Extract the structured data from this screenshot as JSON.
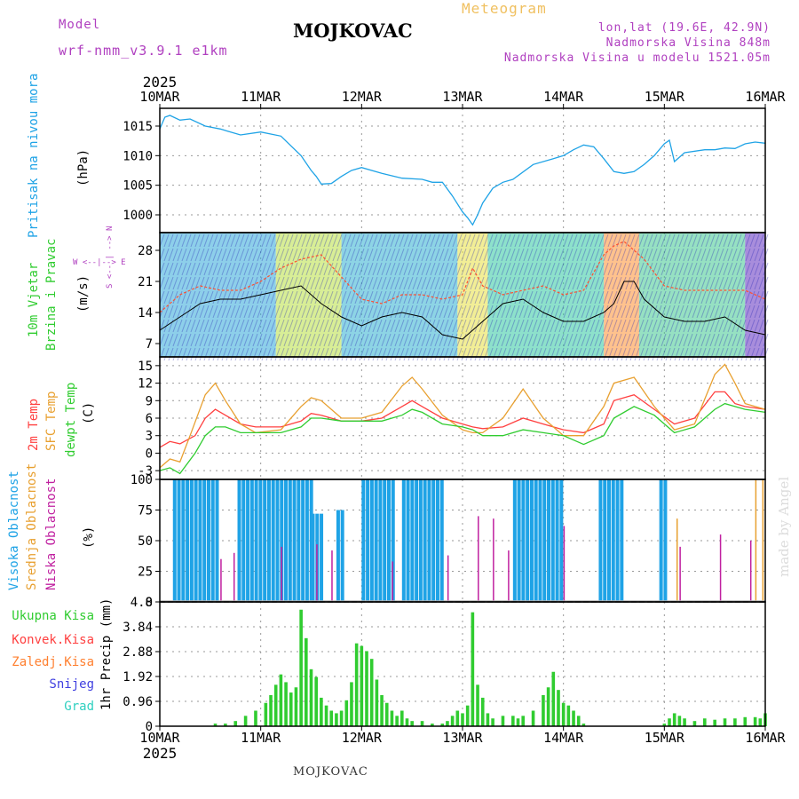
{
  "header": {
    "model_label": "Model",
    "model_value": "wrf-nmm_v3.9.1  e1km",
    "station": "MOJKOVAC",
    "title": "Meteogram",
    "lonlat": "lon,lat (19.6E, 42.9N)",
    "elevation": "Nadmorska Visina 848m",
    "model_elevation": "Nadmorska Visina u modelu 1521.05m"
  },
  "footer": {
    "station": "MOJKOVAC",
    "credit": "made by Angel"
  },
  "colors": {
    "pressure": "#1fa3e6",
    "gust": "#ff5030",
    "wind_black": "#000000",
    "temp2m": "#ff4040",
    "sfc": "#e8a030",
    "dew": "#30cc30",
    "cloud_high": "#1fa3e6",
    "cloud_mid": "#e8a030",
    "cloud_low": "#c020a0",
    "precip": "#30cc30",
    "convect": "#ff4040",
    "frozen": "#ff8030",
    "snow": "#4040e0",
    "hail": "#30d0c0",
    "violet": "#b040c0"
  },
  "chart_data": [
    {
      "type": "line",
      "name": "pressure",
      "x_labels": [
        "10MAR",
        "11MAR",
        "12MAR",
        "13MAR",
        "14MAR",
        "15MAR",
        "16MAR"
      ],
      "year_label": "2025",
      "ylabel_colored": "Pritisak na nivou mora",
      "ylabel_unit": "(hPa)",
      "yticks": [
        1000,
        1005,
        1010,
        1015
      ],
      "ylim": [
        997,
        1018
      ],
      "series": [
        {
          "name": "",
          "x": [
            0,
            0.05,
            0.1,
            0.2,
            0.3,
            0.45,
            0.6,
            0.8,
            1.0,
            1.2,
            1.4,
            1.5,
            1.55,
            1.6,
            1.7,
            1.8,
            1.9,
            2.0,
            2.2,
            2.4,
            2.6,
            2.7,
            2.8,
            2.9,
            3.0,
            3.05,
            3.1,
            3.15,
            3.2,
            3.3,
            3.4,
            3.5,
            3.7,
            3.9,
            4.0,
            4.1,
            4.2,
            4.3,
            4.4,
            4.5,
            4.6,
            4.7,
            4.8,
            4.9,
            5.0,
            5.05,
            5.1,
            5.2,
            5.4,
            5.5,
            5.6,
            5.7,
            5.8,
            5.9,
            6.0
          ],
          "y": [
            1014.5,
            1016.5,
            1016.8,
            1016.0,
            1016.2,
            1015.0,
            1014.5,
            1013.5,
            1014.0,
            1013.3,
            1010.0,
            1007.5,
            1006.5,
            1005.2,
            1005.3,
            1006.5,
            1007.5,
            1008.0,
            1007.0,
            1006.2,
            1006.0,
            1005.5,
            1005.5,
            1003.2,
            1000.5,
            999.5,
            998.3,
            1000.0,
            1002.0,
            1004.5,
            1005.5,
            1006.0,
            1008.5,
            1009.5,
            1010.0,
            1011.0,
            1011.8,
            1011.5,
            1009.5,
            1007.3,
            1007.0,
            1007.3,
            1008.5,
            1010.0,
            1012.0,
            1012.6,
            1009.0,
            1010.5,
            1011.0,
            1011.0,
            1011.3,
            1011.2,
            1012.0,
            1012.3,
            1012.1
          ]
        }
      ]
    },
    {
      "type": "line",
      "name": "wind",
      "ylabel_colored_1": "10m  Vjetar",
      "ylabel_colored_2": "Brzina  i Pravac",
      "ylabel_unit": "(m/s)",
      "legend_compass": "W  <--|-->  E",
      "legend_compass_ns": "S <-- | --> N",
      "yticks": [
        7,
        14,
        21,
        28
      ],
      "ylim": [
        4,
        32
      ],
      "series": [
        {
          "name": "",
          "x": [
            0,
            0.2,
            0.4,
            0.6,
            0.8,
            1.0,
            1.2,
            1.4,
            1.6,
            1.8,
            2.0,
            2.2,
            2.4,
            2.6,
            2.8,
            3.0,
            3.2,
            3.4,
            3.6,
            3.8,
            4.0,
            4.2,
            4.4,
            4.5,
            4.6,
            4.7,
            4.8,
            5.0,
            5.2,
            5.4,
            5.6,
            5.8,
            6.0
          ],
          "y": [
            10,
            13,
            16,
            17,
            17,
            18,
            19,
            20,
            16,
            13,
            11,
            13,
            14,
            13,
            9,
            8,
            12,
            16,
            17,
            14,
            12,
            12,
            14,
            16,
            21,
            21,
            17,
            13,
            12,
            12,
            13,
            10,
            9
          ]
        },
        {
          "name": "",
          "x": [
            0,
            0.2,
            0.4,
            0.6,
            0.8,
            1.0,
            1.2,
            1.4,
            1.6,
            1.8,
            2.0,
            2.2,
            2.4,
            2.6,
            2.8,
            3.0,
            3.1,
            3.2,
            3.4,
            3.6,
            3.8,
            4.0,
            4.2,
            4.4,
            4.5,
            4.6,
            4.8,
            5.0,
            5.2,
            5.4,
            5.6,
            5.8,
            6.0
          ],
          "y": [
            14,
            18,
            20,
            19,
            19,
            21,
            24,
            26,
            27,
            22,
            17,
            16,
            18,
            18,
            17,
            18,
            24,
            20,
            18,
            19,
            20,
            18,
            19,
            27,
            29,
            30,
            26,
            20,
            19,
            19,
            19,
            19,
            17
          ]
        }
      ]
    },
    {
      "type": "line",
      "name": "temperature",
      "ylabels_colored": [
        "2m  Temp",
        "SFC  Temp",
        "dewpt  Temp"
      ],
      "ylabel_unit": "(C)",
      "yticks": [
        -3,
        0,
        3,
        6,
        9,
        12,
        15
      ],
      "ylim": [
        -4.5,
        16.5
      ],
      "series": [
        {
          "name": "2m",
          "x": [
            0,
            0.1,
            0.2,
            0.35,
            0.45,
            0.55,
            0.65,
            0.8,
            0.95,
            1.2,
            1.4,
            1.5,
            1.6,
            1.8,
            2.0,
            2.2,
            2.4,
            2.5,
            2.6,
            2.8,
            3.0,
            3.1,
            3.2,
            3.4,
            3.6,
            3.8,
            4.0,
            4.2,
            4.4,
            4.5,
            4.7,
            4.9,
            5.1,
            5.3,
            5.5,
            5.6,
            5.7,
            5.8,
            6.0
          ],
          "y": [
            1,
            2,
            1.6,
            3,
            6,
            7.5,
            6.5,
            5,
            4.5,
            4.5,
            5.5,
            6.8,
            6.5,
            5.5,
            5.5,
            6,
            8,
            9,
            8,
            6,
            5,
            4.5,
            4.2,
            4.5,
            6,
            5,
            4,
            3.5,
            5,
            9,
            10,
            7.5,
            5,
            6,
            10.5,
            10.5,
            8.5,
            8,
            7.5
          ]
        },
        {
          "name": "sfc",
          "x": [
            0,
            0.1,
            0.2,
            0.3,
            0.45,
            0.55,
            0.65,
            0.8,
            0.95,
            1.2,
            1.4,
            1.5,
            1.6,
            1.8,
            2.0,
            2.2,
            2.4,
            2.5,
            2.6,
            2.8,
            3.0,
            3.1,
            3.2,
            3.4,
            3.6,
            3.8,
            4.0,
            4.2,
            4.4,
            4.5,
            4.7,
            4.9,
            5.1,
            5.3,
            5.5,
            5.6,
            5.7,
            5.8,
            6.0
          ],
          "y": [
            -2.5,
            -1,
            -1.5,
            3,
            10,
            12,
            9,
            5,
            3.5,
            4,
            8,
            9.5,
            9,
            6,
            6,
            7,
            11.5,
            13,
            11,
            6.5,
            4,
            3.5,
            3.5,
            6,
            11,
            6,
            3,
            3,
            8,
            12,
            13,
            8,
            4,
            5,
            13.5,
            15.2,
            12,
            8.5,
            7.5
          ]
        },
        {
          "name": "dew",
          "x": [
            0,
            0.1,
            0.2,
            0.35,
            0.45,
            0.55,
            0.65,
            0.8,
            0.95,
            1.2,
            1.4,
            1.5,
            1.6,
            1.8,
            2.0,
            2.2,
            2.4,
            2.5,
            2.6,
            2.8,
            3.0,
            3.1,
            3.2,
            3.4,
            3.6,
            3.8,
            4.0,
            4.2,
            4.4,
            4.5,
            4.7,
            4.9,
            5.1,
            5.3,
            5.5,
            5.6,
            5.7,
            5.8,
            6.0
          ],
          "y": [
            -3,
            -2.5,
            -3.5,
            0,
            3,
            4.5,
            4.5,
            3.5,
            3.5,
            3.5,
            4.5,
            6,
            6,
            5.5,
            5.5,
            5.5,
            6.5,
            7.5,
            7,
            5,
            4.5,
            4,
            3,
            3,
            4,
            3.5,
            3,
            1.5,
            3,
            6,
            8,
            6.5,
            3.5,
            4.5,
            7.5,
            8.5,
            8,
            7.5,
            7
          ]
        }
      ]
    },
    {
      "type": "bar",
      "name": "clouds",
      "ylabels_colored": [
        "Visoka  Oblacnost",
        "Srednja  Oblacnost",
        "Niska  Oblacnost"
      ],
      "ylabel_unit": "(%)",
      "yticks": [
        0,
        25,
        50,
        75,
        100
      ],
      "ylim": [
        0,
        100
      ],
      "high_clouds": [
        {
          "from": 0.13,
          "to": 0.55,
          "value": 100
        },
        {
          "from": 0.77,
          "to": 1.5,
          "value": 100
        },
        {
          "from": 1.5,
          "to": 1.62,
          "value": 72
        },
        {
          "from": 1.75,
          "to": 1.8,
          "value": 75
        },
        {
          "from": 2.0,
          "to": 2.3,
          "value": 100
        },
        {
          "from": 2.4,
          "to": 2.8,
          "value": 100
        },
        {
          "from": 3.5,
          "to": 4.0,
          "value": 100
        },
        {
          "from": 4.35,
          "to": 4.6,
          "value": 100
        },
        {
          "from": 4.95,
          "to": 5.0,
          "value": 100
        }
      ],
      "low_clouds": [
        {
          "x": 0.6,
          "value": 35
        },
        {
          "x": 0.73,
          "value": 40
        },
        {
          "x": 1.2,
          "value": 45
        },
        {
          "x": 1.55,
          "value": 47
        },
        {
          "x": 1.7,
          "value": 42
        },
        {
          "x": 2.3,
          "value": 33
        },
        {
          "x": 2.85,
          "value": 38
        },
        {
          "x": 3.15,
          "value": 70
        },
        {
          "x": 3.3,
          "value": 68
        },
        {
          "x": 3.45,
          "value": 42
        },
        {
          "x": 4.0,
          "value": 62
        },
        {
          "x": 5.15,
          "value": 45
        },
        {
          "x": 5.55,
          "value": 55
        },
        {
          "x": 5.85,
          "value": 50
        }
      ],
      "mid_clouds": [
        {
          "x": 5.12,
          "value": 68
        },
        {
          "x": 5.9,
          "value": 100
        },
        {
          "x": 5.97,
          "value": 100
        }
      ]
    },
    {
      "type": "bar",
      "name": "precipitation",
      "legend": [
        "Ukupna  Kisa",
        "Konvek.Kisa",
        "Zaledj.Kisa",
        "Snijeg",
        "Grad"
      ],
      "ylabel": "1hr Precip (mm)",
      "yticks": [
        0,
        0.96,
        1.92,
        2.88,
        3.84,
        4.8
      ],
      "ylim": [
        0,
        4.8
      ],
      "x_labels": [
        "10MAR",
        "11MAR",
        "12MAR",
        "13MAR",
        "14MAR",
        "15MAR",
        "16MAR"
      ],
      "year_label": "2025",
      "segments": [
        {
          "x": [
            0.55,
            0.65,
            0.75,
            0.85,
            0.95,
            1.05,
            1.1,
            1.15,
            1.2,
            1.25,
            1.3,
            1.35,
            1.4,
            1.45,
            1.5,
            1.55,
            1.6,
            1.65,
            1.7,
            1.75,
            1.8
          ],
          "y": [
            0.1,
            0.1,
            0.2,
            0.4,
            0.6,
            0.9,
            1.2,
            1.6,
            2.0,
            1.7,
            1.3,
            1.5,
            4.5,
            3.4,
            2.2,
            1.9,
            1.1,
            0.8,
            0.6,
            0.5,
            0.6
          ]
        },
        {
          "x": [
            1.85,
            1.9,
            1.95,
            2.0,
            2.05,
            2.1,
            2.15,
            2.2,
            2.25,
            2.3,
            2.35,
            2.4,
            2.45,
            2.5,
            2.6,
            2.7,
            2.8
          ],
          "y": [
            1.0,
            1.7,
            3.2,
            3.1,
            2.9,
            2.6,
            1.8,
            1.2,
            0.9,
            0.6,
            0.4,
            0.6,
            0.3,
            0.2,
            0.2,
            0.1,
            0.1
          ]
        },
        {
          "x": [
            2.85,
            2.9,
            2.95,
            3.0,
            3.05,
            3.1,
            3.15,
            3.2,
            3.25,
            3.3,
            3.4,
            3.5
          ],
          "y": [
            0.2,
            0.4,
            0.6,
            0.5,
            0.8,
            4.4,
            1.6,
            1.1,
            0.5,
            0.3,
            0.4,
            0.4
          ]
        },
        {
          "x": [
            3.55,
            3.6,
            3.7,
            3.8,
            3.85,
            3.9,
            3.95,
            4.0,
            4.05,
            4.1,
            4.15,
            4.2
          ],
          "y": [
            0.3,
            0.4,
            0.6,
            1.2,
            1.5,
            2.1,
            1.4,
            0.9,
            0.8,
            0.6,
            0.4,
            0.1
          ]
        },
        {
          "x": [
            5.0,
            5.05,
            5.1,
            5.15,
            5.2,
            5.3,
            5.4,
            5.5,
            5.6,
            5.7,
            5.8,
            5.9,
            5.95,
            6.0
          ],
          "y": [
            0.1,
            0.3,
            0.5,
            0.4,
            0.3,
            0.2,
            0.3,
            0.25,
            0.3,
            0.3,
            0.35,
            0.35,
            0.3,
            0.5
          ]
        }
      ]
    }
  ]
}
